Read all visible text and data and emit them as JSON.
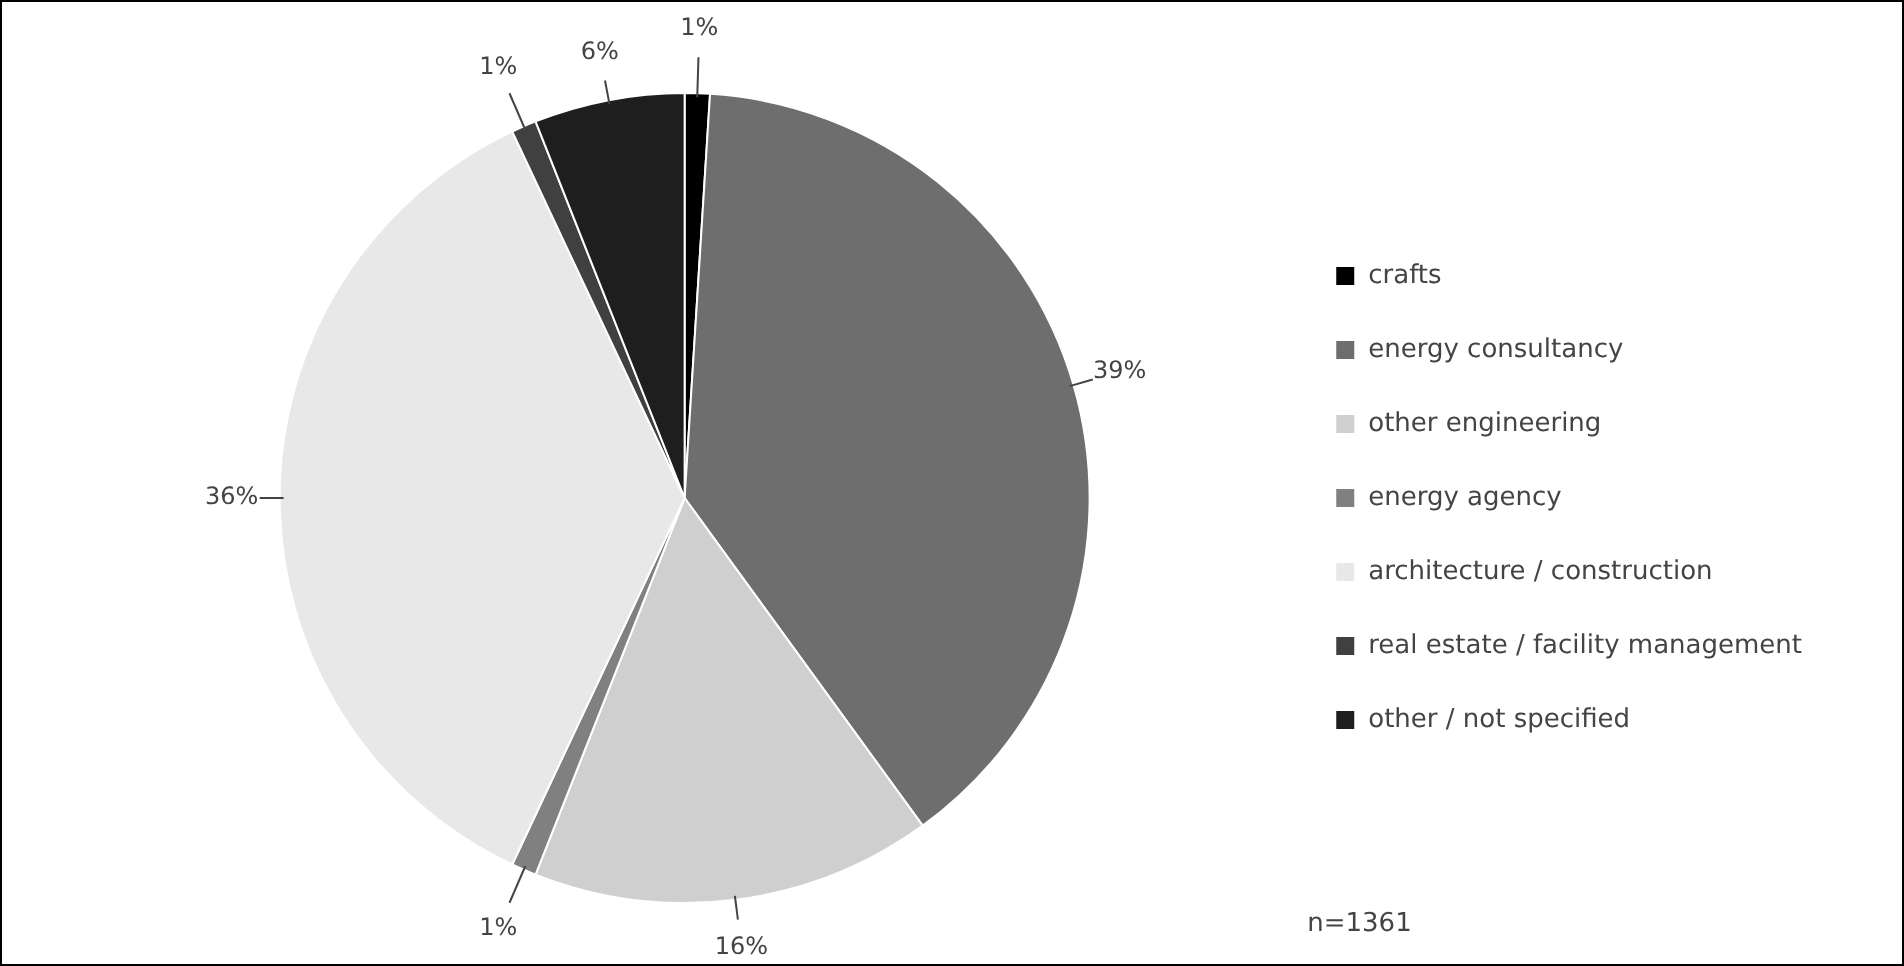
{
  "chart_data": {
    "type": "pie",
    "categories": [
      "crafts",
      "energy consultancy",
      "other engineering",
      "energy agency",
      "architecture / construction",
      "real estate / facility management",
      "other / not specified"
    ],
    "values": [
      1,
      39,
      16,
      1,
      36,
      1,
      6
    ],
    "colors": [
      "#000000",
      "#6e6e6e",
      "#cfcfcf",
      "#808080",
      "#e8e8e8",
      "#404040",
      "#1e1e1e"
    ],
    "value_labels": [
      "1%",
      "39%",
      "16%",
      "1%",
      "36%",
      "1%",
      "6%"
    ],
    "legend": "right",
    "annotations": [
      "n=1361"
    ]
  }
}
